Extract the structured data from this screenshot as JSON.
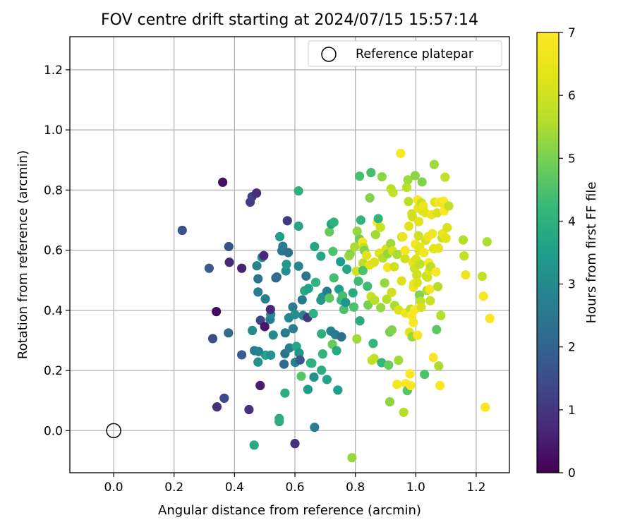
{
  "chart_data": {
    "type": "scatter",
    "title": "FOV centre drift starting at 2024/07/15 15:57:14",
    "xlabel": "Angular distance from reference (arcmin)",
    "ylabel": "Rotation from reference (arcmin)",
    "xlim": [
      -0.145,
      1.31
    ],
    "ylim": [
      -0.14,
      1.31
    ],
    "xticks": [
      "0.0",
      "0.2",
      "0.4",
      "0.6",
      "0.8",
      "1.0",
      "1.2"
    ],
    "yticks": [
      "0.0",
      "0.2",
      "0.4",
      "0.6",
      "0.8",
      "1.0",
      "1.2"
    ],
    "grid": true,
    "legend": {
      "position": "top-right",
      "entries": [
        "Reference platepar"
      ]
    },
    "reference_point": {
      "x": 0.0,
      "y": 0.0,
      "label": "Reference platepar"
    },
    "colorbar": {
      "label": "Hours from first FF file",
      "colormap": "viridis",
      "range": [
        0,
        7
      ],
      "ticks": [
        "0",
        "1",
        "2",
        "3",
        "4",
        "5",
        "6",
        "7"
      ]
    },
    "points": [
      [
        0.227,
        0.666,
        1.6
      ],
      [
        0.316,
        0.54,
        1.8
      ],
      [
        0.328,
        0.306,
        1.5
      ],
      [
        0.34,
        0.396,
        0.2
      ],
      [
        0.342,
        0.079,
        0.9
      ],
      [
        0.361,
        0.826,
        0.3
      ],
      [
        0.366,
        0.108,
        1.4
      ],
      [
        0.381,
        0.612,
        1.6
      ],
      [
        0.383,
        0.56,
        0.7
      ],
      [
        0.38,
        0.325,
        2.2
      ],
      [
        0.424,
        0.54,
        0.6
      ],
      [
        0.424,
        0.252,
        1.8
      ],
      [
        0.448,
        0.07,
        0.9
      ],
      [
        0.452,
        0.76,
        1.1
      ],
      [
        0.458,
        0.778,
        1.2
      ],
      [
        0.459,
        0.333,
        3.0
      ],
      [
        0.466,
        0.266,
        2.6
      ],
      [
        0.473,
        0.79,
        0.8
      ],
      [
        0.474,
        0.548,
        2.8
      ],
      [
        0.478,
        0.505,
        2.4
      ],
      [
        0.478,
        0.461,
        2.6
      ],
      [
        0.478,
        0.228,
        3.2
      ],
      [
        0.485,
        0.15,
        0.5
      ],
      [
        0.486,
        0.367,
        1.3
      ],
      [
        0.491,
        0.576,
        3.0
      ],
      [
        0.497,
        0.582,
        0.7
      ],
      [
        0.5,
        0.346,
        0.4
      ],
      [
        0.502,
        0.438,
        2.7
      ],
      [
        0.503,
        0.251,
        3.6
      ],
      [
        0.518,
        0.37,
        2.7
      ],
      [
        0.52,
        0.386,
        3.0
      ],
      [
        0.519,
        0.403,
        0.7
      ],
      [
        0.528,
        0.318,
        3.1
      ],
      [
        0.537,
        0.508,
        1.8
      ],
      [
        0.54,
        0.511,
        2.2
      ],
      [
        0.548,
        0.04,
        3.9
      ],
      [
        0.548,
        0.03,
        3.9
      ],
      [
        0.55,
        0.645,
        3.5
      ],
      [
        0.557,
        0.598,
        2.4
      ],
      [
        0.56,
        0.613,
        2.6
      ],
      [
        0.564,
        0.221,
        2.2
      ],
      [
        0.567,
        0.125,
        3.9
      ],
      [
        0.567,
        0.256,
        2.4
      ],
      [
        0.568,
        0.325,
        2.6
      ],
      [
        0.57,
        0.531,
        3.1
      ],
      [
        0.572,
        0.553,
        3.4
      ],
      [
        0.575,
        0.698,
        1.1
      ],
      [
        0.578,
        0.592,
        2.3
      ],
      [
        0.58,
        0.375,
        2.9
      ],
      [
        0.582,
        0.275,
        2.7
      ],
      [
        0.593,
        0.411,
        2.6
      ],
      [
        0.594,
        0.339,
        2.7
      ],
      [
        0.6,
        0.386,
        3.1
      ],
      [
        0.601,
        0.227,
        2.7
      ],
      [
        0.605,
        0.28,
        3.7
      ],
      [
        0.612,
        0.797,
        4.0
      ],
      [
        0.612,
        0.68,
        3.7
      ],
      [
        0.612,
        0.547,
        2.9
      ],
      [
        0.614,
        0.258,
        3.3
      ],
      [
        0.617,
        0.235,
        1.7
      ],
      [
        0.621,
        0.181,
        4.6
      ],
      [
        0.624,
        0.435,
        2.5
      ],
      [
        0.627,
        0.383,
        2.9
      ],
      [
        0.632,
        0.465,
        3.8
      ],
      [
        0.637,
        0.514,
        2.4
      ],
      [
        0.642,
        0.376,
        1.0
      ],
      [
        0.643,
        0.137,
        3.4
      ],
      [
        0.645,
        0.473,
        3.6
      ],
      [
        0.652,
        0.225,
        4.2
      ],
      [
        0.656,
        0.224,
        4.0
      ],
      [
        0.661,
        0.389,
        4.0
      ],
      [
        0.663,
        0.178,
        3.2
      ],
      [
        0.665,
        0.612,
        3.7
      ],
      [
        0.665,
        0.011,
        2.7
      ],
      [
        0.669,
        0.493,
        4.1
      ],
      [
        0.686,
        0.58,
        3.7
      ],
      [
        0.686,
        0.434,
        3.4
      ],
      [
        0.688,
        0.322,
        4.0
      ],
      [
        0.691,
        0.444,
        3.3
      ],
      [
        0.688,
        0.201,
        3.9
      ],
      [
        0.692,
        0.255,
        4.1
      ],
      [
        0.706,
        0.463,
        2.6
      ],
      [
        0.706,
        0.17,
        3.6
      ],
      [
        0.714,
        0.661,
        4.8
      ],
      [
        0.714,
        0.441,
        4.7
      ],
      [
        0.72,
        0.687,
        3.7
      ],
      [
        0.719,
        0.331,
        2.8
      ],
      [
        0.724,
        0.287,
        4.8
      ],
      [
        0.726,
        0.596,
        4.5
      ],
      [
        0.729,
        0.693,
        4.0
      ],
      [
        0.729,
        0.508,
        4.4
      ],
      [
        0.734,
        0.319,
        2.6
      ],
      [
        0.738,
        0.266,
        3.8
      ],
      [
        0.742,
        0.135,
        3.5
      ],
      [
        0.746,
        0.47,
        3.5
      ],
      [
        0.751,
        0.562,
        3.5
      ],
      [
        0.753,
        0.434,
        4.2
      ],
      [
        0.754,
        0.312,
        2.3
      ],
      [
        0.758,
        0.448,
        4.4
      ],
      [
        0.762,
        0.403,
        4.5
      ],
      [
        0.768,
        0.426,
        3.3
      ],
      [
        0.772,
        0.537,
        3.7
      ],
      [
        0.779,
        0.581,
        5.4
      ],
      [
        0.783,
        0.588,
        5.2
      ],
      [
        0.789,
        -0.09,
        5.3
      ],
      [
        0.792,
        0.458,
        3.8
      ],
      [
        0.795,
        0.411,
        4.5
      ],
      [
        0.798,
        0.611,
        5.5
      ],
      [
        0.804,
        0.53,
        6.0
      ],
      [
        0.805,
        0.305,
        5.4
      ],
      [
        0.806,
        0.663,
        5.3
      ],
      [
        0.81,
        0.497,
        4.3
      ],
      [
        0.814,
        0.637,
        4.9
      ],
      [
        0.814,
        0.846,
        4.4
      ],
      [
        0.815,
        0.365,
        3.8
      ],
      [
        0.818,
        0.7,
        4.1
      ],
      [
        0.824,
        0.627,
        6.8
      ],
      [
        0.825,
        0.557,
        5.7
      ],
      [
        0.825,
        0.532,
        4.5
      ],
      [
        0.828,
        0.609,
        5.8
      ],
      [
        0.83,
        0.599,
        5.1
      ],
      [
        0.837,
        0.583,
        6.3
      ],
      [
        0.84,
        0.48,
        4.3
      ],
      [
        0.842,
        0.418,
        5.0
      ],
      [
        0.848,
        0.774,
        5.1
      ],
      [
        0.848,
        0.551,
        6.3
      ],
      [
        0.852,
        0.446,
        5.9
      ],
      [
        0.852,
        0.858,
        4.4
      ],
      [
        0.855,
        0.234,
        5.9
      ],
      [
        0.859,
        0.29,
        4.2
      ],
      [
        0.862,
        0.24,
        5.8
      ],
      [
        0.863,
        0.56,
        6.2
      ],
      [
        0.864,
        0.434,
        5.7
      ],
      [
        0.867,
        0.652,
        5.4
      ],
      [
        0.873,
        0.693,
        6.8
      ],
      [
        0.876,
        0.705,
        4.1
      ],
      [
        0.879,
        0.59,
        6.3
      ],
      [
        0.883,
        0.676,
        5.9
      ],
      [
        0.884,
        0.409,
        5.3
      ],
      [
        0.887,
        0.226,
        4.2
      ],
      [
        0.888,
        0.844,
        5.2
      ],
      [
        0.891,
        0.574,
        5.6
      ],
      [
        0.897,
        0.491,
        5.3
      ],
      [
        0.902,
        0.604,
        6.1
      ],
      [
        0.904,
        0.437,
        5.6
      ],
      [
        0.907,
        0.588,
        5.3
      ],
      [
        0.907,
        0.543,
        6.8
      ],
      [
        0.91,
        0.218,
        4.8
      ],
      [
        0.914,
        0.096,
        5.2
      ],
      [
        0.914,
        0.328,
        5.0
      ],
      [
        0.917,
        0.622,
        5.4
      ],
      [
        0.918,
        0.804,
        5.7
      ],
      [
        0.92,
        0.46,
        6.0
      ],
      [
        0.921,
        0.335,
        5.1
      ],
      [
        0.923,
        0.598,
        6.1
      ],
      [
        0.925,
        0.792,
        5.8
      ],
      [
        0.929,
        0.545,
        6.0
      ],
      [
        0.93,
        0.416,
        5.5
      ],
      [
        0.938,
        0.154,
        6.8
      ],
      [
        0.938,
        0.586,
        5.5
      ],
      [
        0.943,
        0.401,
        6.2
      ],
      [
        0.943,
        0.234,
        5.4
      ],
      [
        0.95,
        0.922,
        6.9
      ],
      [
        0.953,
        0.498,
        6.2
      ],
      [
        0.954,
        0.644,
        5.6
      ],
      [
        0.957,
        0.645,
        6.5
      ],
      [
        0.96,
        0.061,
        5.6
      ],
      [
        0.964,
        0.572,
        6.0
      ],
      [
        0.965,
        0.599,
        6.8
      ],
      [
        0.966,
        0.391,
        6.6
      ],
      [
        0.967,
        0.156,
        6.9
      ],
      [
        0.97,
        0.809,
        5.7
      ],
      [
        0.972,
        0.133,
        4.6
      ],
      [
        0.974,
        0.834,
        5.4
      ],
      [
        0.976,
        0.762,
        5.7
      ],
      [
        0.977,
        0.68,
        6.3
      ],
      [
        0.979,
        0.327,
        6.3
      ],
      [
        0.981,
        0.189,
        6.9
      ],
      [
        0.983,
        0.404,
        5.7
      ],
      [
        0.983,
        0.15,
        6.9
      ],
      [
        0.986,
        0.384,
        6.9
      ],
      [
        0.987,
        0.721,
        6.0
      ],
      [
        0.988,
        0.312,
        5.3
      ],
      [
        0.989,
        0.711,
        6.0
      ],
      [
        0.99,
        0.56,
        6.5
      ],
      [
        0.992,
        0.477,
        6.6
      ],
      [
        0.992,
        0.36,
        6.9
      ],
      [
        0.994,
        0.488,
        6.5
      ],
      [
        0.996,
        0.54,
        6.0
      ],
      [
        0.996,
        0.402,
        6.9
      ],
      [
        0.998,
        0.848,
        5.2
      ],
      [
        0.999,
        0.62,
        6.7
      ],
      [
        1.001,
        0.57,
        6.2
      ],
      [
        1.003,
        0.515,
        6.7
      ],
      [
        1.004,
        0.52,
        6.0
      ],
      [
        1.005,
        0.492,
        6.1
      ],
      [
        1.006,
        0.317,
        6.7
      ],
      [
        1.007,
        0.767,
        6.8
      ],
      [
        1.008,
        0.74,
        6.5
      ],
      [
        1.009,
        0.648,
        6.0
      ],
      [
        1.01,
        0.695,
        6.3
      ],
      [
        1.011,
        0.599,
        6.2
      ],
      [
        1.012,
        0.451,
        5.1
      ],
      [
        1.013,
        0.61,
        6.4
      ],
      [
        1.014,
        0.554,
        5.8
      ],
      [
        1.016,
        0.43,
        5.8
      ],
      [
        1.018,
        0.41,
        6.1
      ],
      [
        1.019,
        0.757,
        5.8
      ],
      [
        1.021,
        0.827,
        5.1
      ],
      [
        1.022,
        0.731,
        6.3
      ],
      [
        1.025,
        0.747,
        6.6
      ],
      [
        1.027,
        0.592,
        6.7
      ],
      [
        1.029,
        0.187,
        4.5
      ],
      [
        1.031,
        0.725,
        6.3
      ],
      [
        1.033,
        0.633,
        6.1
      ],
      [
        1.035,
        0.514,
        5.8
      ],
      [
        1.037,
        0.466,
        5.5
      ],
      [
        1.039,
        0.51,
        6.0
      ],
      [
        1.041,
        0.645,
        6.6
      ],
      [
        1.043,
        0.558,
        6.9
      ],
      [
        1.045,
        0.533,
        6.3
      ],
      [
        1.046,
        0.47,
        6.8
      ],
      [
        1.048,
        0.432,
        5.9
      ],
      [
        1.05,
        0.545,
        5.7
      ],
      [
        1.052,
        0.718,
        6.5
      ],
      [
        1.055,
        0.655,
        6.7
      ],
      [
        1.058,
        0.243,
        6.9
      ],
      [
        1.059,
        0.605,
        6.3
      ],
      [
        1.061,
        0.885,
        5.4
      ],
      [
        1.063,
        0.76,
        6.3
      ],
      [
        1.067,
        0.528,
        6.9
      ],
      [
        1.069,
        0.336,
        4.7
      ],
      [
        1.071,
        0.724,
        6.1
      ],
      [
        1.073,
        0.479,
        5.6
      ],
      [
        1.075,
        0.607,
        6.4
      ],
      [
        1.076,
        0.215,
        5.5
      ],
      [
        1.078,
        0.76,
        6.9
      ],
      [
        1.08,
        0.15,
        6.9
      ],
      [
        1.083,
        0.383,
        5.6
      ],
      [
        1.085,
        0.758,
        6.5
      ],
      [
        1.087,
        0.641,
        5.9
      ],
      [
        1.089,
        0.655,
        6.6
      ],
      [
        1.092,
        0.763,
        6.9
      ],
      [
        1.094,
        0.731,
        6.9
      ],
      [
        1.097,
        0.843,
        5.8
      ],
      [
        1.1,
        0.64,
        6.3
      ],
      [
        1.104,
        0.675,
        6.1
      ],
      [
        1.109,
        0.747,
        5.8
      ],
      [
        1.157,
        0.634,
        5.6
      ],
      [
        1.16,
        0.581,
        5.8
      ],
      [
        1.165,
        0.518,
        6.6
      ],
      [
        1.22,
        0.513,
        5.8
      ],
      [
        1.224,
        0.447,
        6.9
      ],
      [
        1.23,
        0.078,
        6.9
      ],
      [
        1.236,
        0.628,
        5.5
      ],
      [
        1.245,
        0.373,
        6.9
      ],
      [
        0.48,
        0.263,
        2.8
      ],
      [
        0.52,
        0.251,
        3.2
      ],
      [
        0.6,
        -0.043,
        0.9
      ],
      [
        0.465,
        -0.048,
        3.8
      ]
    ]
  }
}
